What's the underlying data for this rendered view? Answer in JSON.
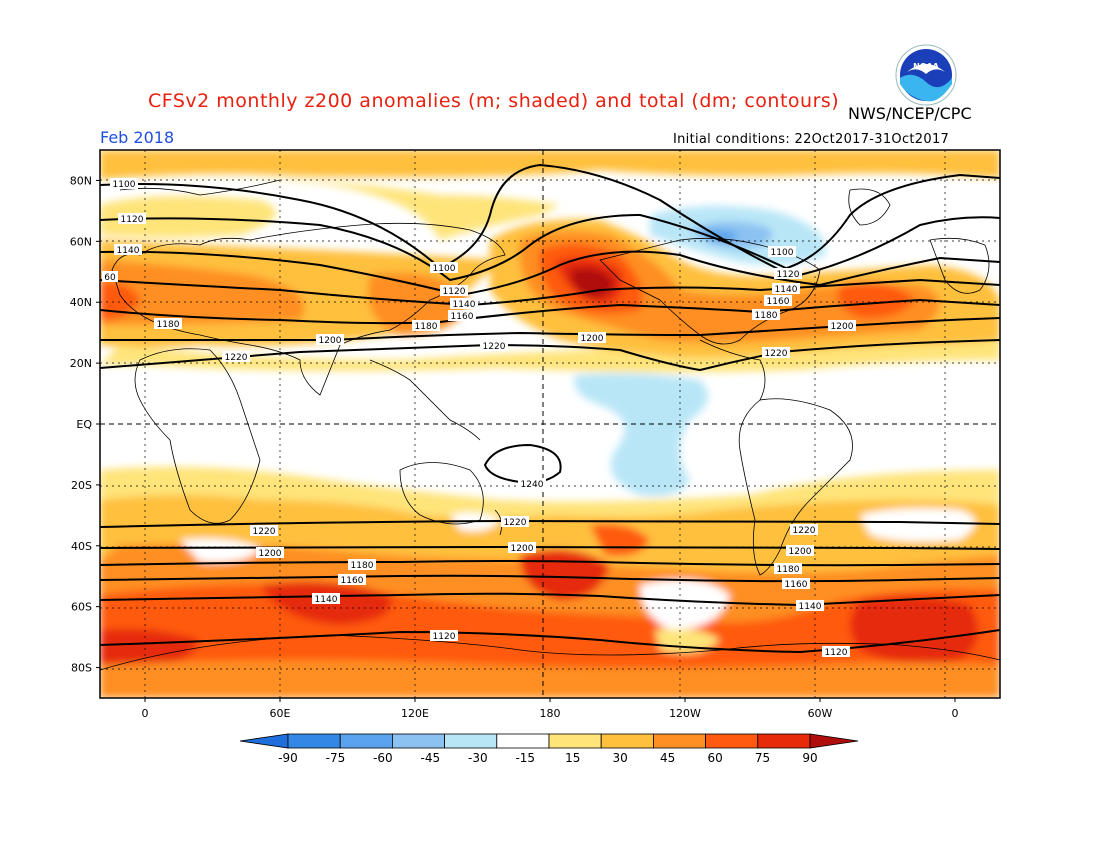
{
  "header": {
    "title": "CFSv2 monthly z200 anomalies (m; shaded) and total (dm; contours)",
    "agency": "NWS/NCEP/CPC",
    "month": "Feb 2018",
    "initial_conditions": "Initial conditions: 22Oct2017-31Oct2017"
  },
  "logo": {
    "text": "NOAA",
    "icon": "noaa-logo-icon"
  },
  "map": {
    "lat_labels": [
      "80N",
      "60N",
      "40N",
      "20N",
      "EQ",
      "20S",
      "40S",
      "60S",
      "80S"
    ],
    "lat_values": [
      80,
      60,
      40,
      20,
      0,
      -20,
      -40,
      -60,
      -80
    ],
    "lon_labels": [
      "0",
      "60E",
      "120E",
      "180",
      "120W",
      "60W",
      "0"
    ],
    "lon_values": [
      0,
      60,
      120,
      180,
      240,
      300,
      360
    ],
    "lon_range": [
      -20,
      380
    ],
    "lat_range": [
      -90,
      90
    ]
  },
  "colorbar": {
    "ticks": [
      "-90",
      "-75",
      "-60",
      "-45",
      "-30",
      "-15",
      "15",
      "30",
      "45",
      "60",
      "75",
      "90"
    ],
    "colors": [
      "#1e6fdc",
      "#3388e6",
      "#5ba3ec",
      "#8cc2f2",
      "#b9e6f7",
      "#ffffff",
      "#ffe47a",
      "#ffc03d",
      "#ff8f22",
      "#ff5a10",
      "#e62a0a",
      "#b00e0c"
    ]
  },
  "contours": {
    "nh_labels": [
      "1100",
      "1120",
      "1140",
      "60",
      "1180",
      "1220",
      "1100",
      "1120",
      "1140",
      "1160",
      "1180",
      "1200",
      "1220",
      "1200",
      "1100",
      "1120",
      "1140",
      "1160",
      "1180",
      "1200",
      "1220"
    ],
    "sh_labels": [
      "1240",
      "1220",
      "1200",
      "1180",
      "1160",
      "1140",
      "1120",
      "1220",
      "1200",
      "1220",
      "1200",
      "1180",
      "1160",
      "1140",
      "1120"
    ]
  }
}
